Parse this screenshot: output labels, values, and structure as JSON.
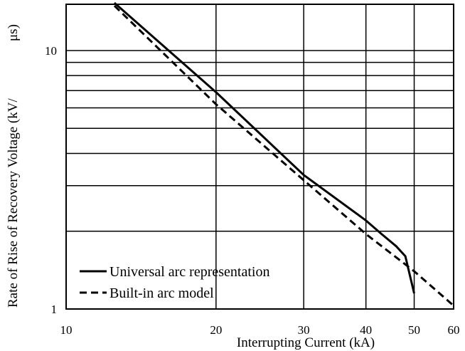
{
  "chart_data": {
    "type": "line",
    "xlabel": "Interrupting Current (kA)",
    "ylabel_main": "Rate of Rise of Recovery Voltage (kV/",
    "ylabel_unit": "μs)",
    "xscale": "log",
    "yscale": "log",
    "xlim": [
      10,
      60
    ],
    "ylim": [
      1,
      15
    ],
    "x_ticks": [
      10,
      20,
      30,
      40,
      50,
      60
    ],
    "y_ticks": [
      1,
      10
    ],
    "x_gridlines": [
      10,
      20,
      30,
      40,
      50,
      60
    ],
    "y_gridlines": [
      1,
      2,
      3,
      4,
      5,
      6,
      7,
      8,
      9,
      10
    ],
    "grid": true,
    "legend_position": "bottom-left",
    "series": [
      {
        "name": "Universal arc representation",
        "style": "solid",
        "x": [
          12.5,
          20,
          30,
          40,
          43,
          46,
          48,
          50
        ],
        "y": [
          15.3,
          6.9,
          3.3,
          2.2,
          1.95,
          1.75,
          1.6,
          1.15
        ]
      },
      {
        "name": "Built-in arc model",
        "style": "dashed",
        "x": [
          12.5,
          20,
          30,
          40,
          50,
          60
        ],
        "y": [
          14.9,
          6.2,
          3.15,
          1.95,
          1.4,
          1.03
        ]
      }
    ]
  }
}
